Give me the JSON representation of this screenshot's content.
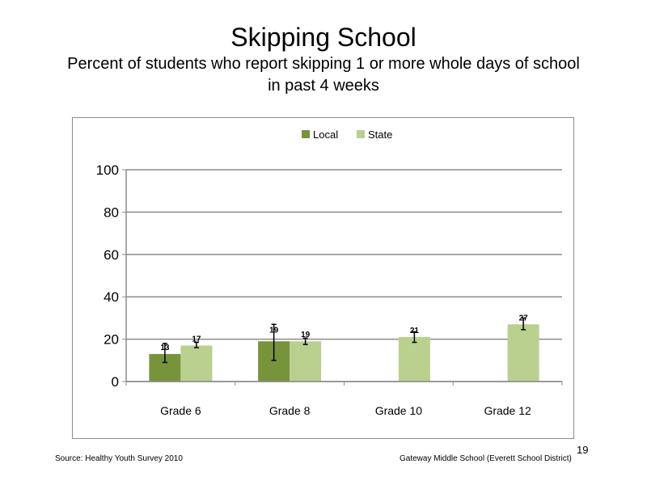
{
  "title": "Skipping School",
  "subtitle": "Percent of students who report skipping 1 or more whole days of school in past 4 weeks",
  "footer": {
    "source": "Source: Healthy Youth Survey 2010",
    "school": "Gateway Middle  School (Everett School District)",
    "page_number": "19"
  },
  "chart_data": {
    "type": "bar",
    "categories": [
      "Grade 6",
      "Grade 8",
      "Grade 10",
      "Grade 12"
    ],
    "series": [
      {
        "name": "Local",
        "color": "#77933c",
        "values": [
          13,
          19,
          null,
          null
        ],
        "labels": [
          "13",
          "19",
          "",
          ""
        ],
        "err_low": [
          9,
          10,
          null,
          null
        ],
        "err_high": [
          18,
          27,
          null,
          null
        ]
      },
      {
        "name": "State",
        "color": "#b9d08f",
        "values": [
          17,
          19,
          21,
          27
        ],
        "labels": [
          "17",
          "19",
          "21",
          "27"
        ],
        "err_low": [
          16,
          17.5,
          18.5,
          24.5
        ],
        "err_high": [
          18.5,
          20.5,
          23.5,
          30
        ]
      }
    ],
    "yticks": [
      "0",
      "20",
      "40",
      "60",
      "80",
      "100"
    ],
    "ylim": [
      0,
      100
    ],
    "grid": true,
    "legend_position": "top-center"
  }
}
